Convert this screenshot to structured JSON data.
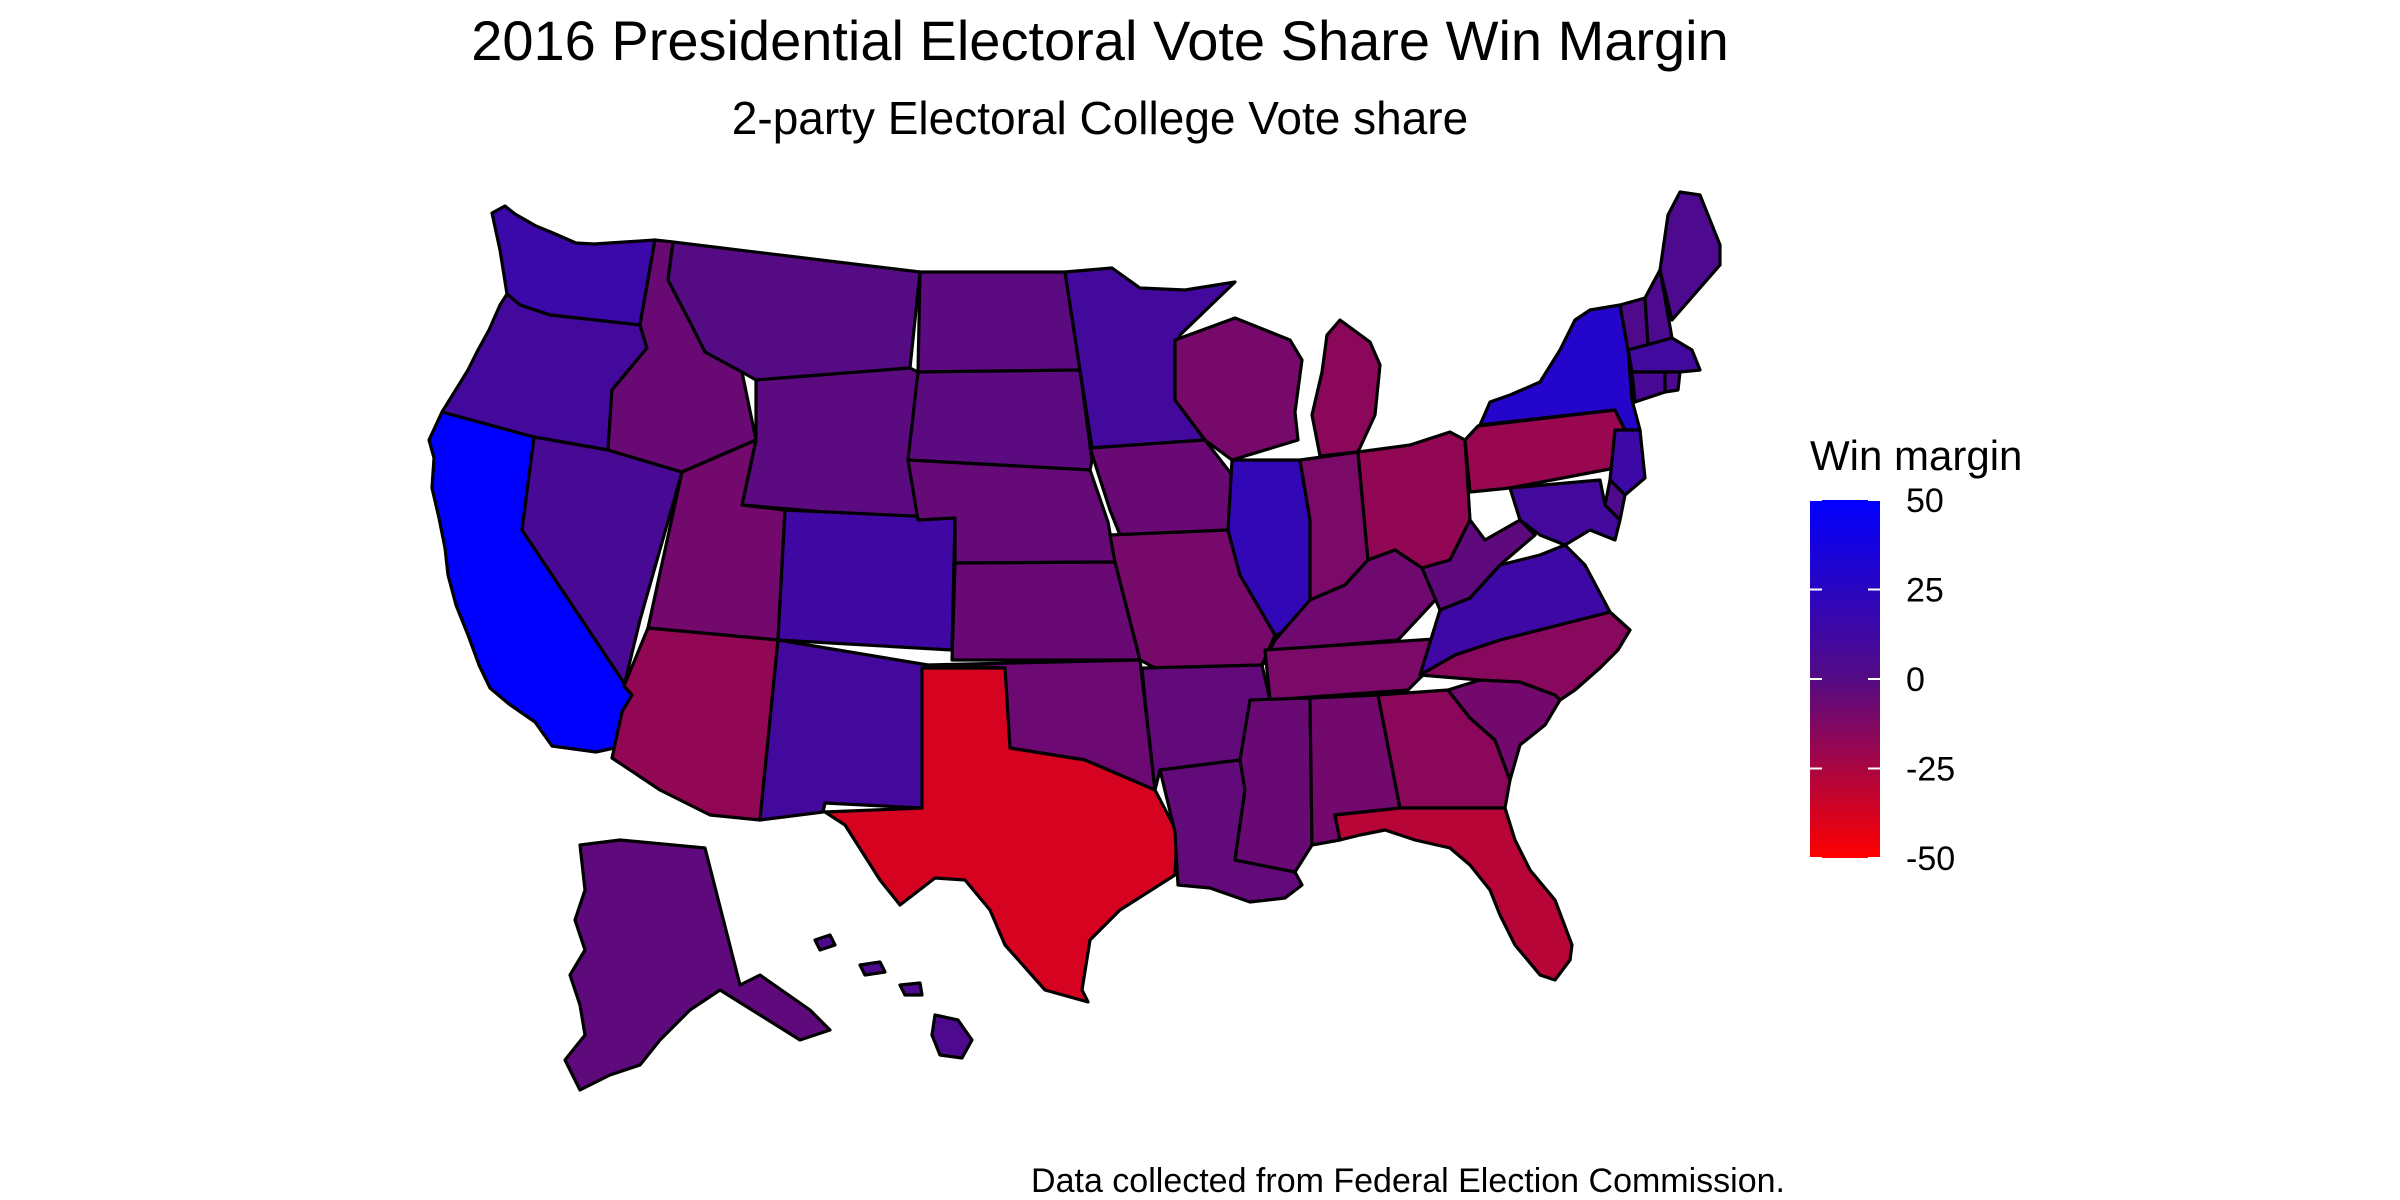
{
  "title": "2016 Presidential Electoral Vote Share Win Margin",
  "subtitle": "2-party Electoral College Vote share",
  "caption": "Data collected from Federal Election Commission.",
  "legend": {
    "title": "Win margin",
    "ticks": [
      "50",
      "25",
      "0",
      "-25",
      "-50"
    ],
    "colors": {
      "high": "#0000ff",
      "mid": "#540b84",
      "low": "#ff0000"
    }
  },
  "chart_data": {
    "type": "heatmap",
    "variable": "Win margin",
    "scale_range": [
      -50,
      50
    ],
    "states": [
      {
        "name": "California",
        "value": 57
      },
      {
        "name": "Washington",
        "value": 15
      },
      {
        "name": "Oregon",
        "value": 10
      },
      {
        "name": "Nevada",
        "value": 7
      },
      {
        "name": "Idaho",
        "value": -6
      },
      {
        "name": "Montana",
        "value": 0
      },
      {
        "name": "Wyoming",
        "value": -2
      },
      {
        "name": "Utah",
        "value": -9
      },
      {
        "name": "Arizona",
        "value": -18
      },
      {
        "name": "Colorado",
        "value": 12
      },
      {
        "name": "New Mexico",
        "value": 10
      },
      {
        "name": "North Dakota",
        "value": -2
      },
      {
        "name": "South Dakota",
        "value": -2
      },
      {
        "name": "Nebraska",
        "value": -5
      },
      {
        "name": "Kansas",
        "value": -6
      },
      {
        "name": "Oklahoma",
        "value": -7
      },
      {
        "name": "Texas",
        "value": -38
      },
      {
        "name": "Minnesota",
        "value": 10
      },
      {
        "name": "Iowa",
        "value": -6
      },
      {
        "name": "Missouri",
        "value": -10
      },
      {
        "name": "Arkansas",
        "value": -4
      },
      {
        "name": "Louisiana",
        "value": -4
      },
      {
        "name": "Wisconsin",
        "value": -10
      },
      {
        "name": "Illinois",
        "value": 20
      },
      {
        "name": "Michigan",
        "value": -16
      },
      {
        "name": "Indiana",
        "value": -11
      },
      {
        "name": "Ohio",
        "value": -18
      },
      {
        "name": "Kentucky",
        "value": -8
      },
      {
        "name": "Tennessee",
        "value": -11
      },
      {
        "name": "Mississippi",
        "value": -6
      },
      {
        "name": "Alabama",
        "value": -9
      },
      {
        "name": "Georgia",
        "value": -16
      },
      {
        "name": "Florida",
        "value": -29
      },
      {
        "name": "South Carolina",
        "value": -9
      },
      {
        "name": "North Carolina",
        "value": -15
      },
      {
        "name": "Virginia",
        "value": 13
      },
      {
        "name": "West Virginia",
        "value": -3
      },
      {
        "name": "Pennsylvania",
        "value": -20
      },
      {
        "name": "New York",
        "value": 29
      },
      {
        "name": "Vermont",
        "value": 3
      },
      {
        "name": "New Hampshire",
        "value": 4
      },
      {
        "name": "Maine",
        "value": 4
      },
      {
        "name": "Massachusetts",
        "value": 11
      },
      {
        "name": "Connecticut",
        "value": 7
      },
      {
        "name": "Rhode Island",
        "value": 4
      },
      {
        "name": "New Jersey",
        "value": 14
      },
      {
        "name": "Delaware",
        "value": 3
      },
      {
        "name": "Maryland",
        "value": 10
      },
      {
        "name": "Alaska",
        "value": -3
      },
      {
        "name": "Hawaii",
        "value": 4
      }
    ]
  }
}
